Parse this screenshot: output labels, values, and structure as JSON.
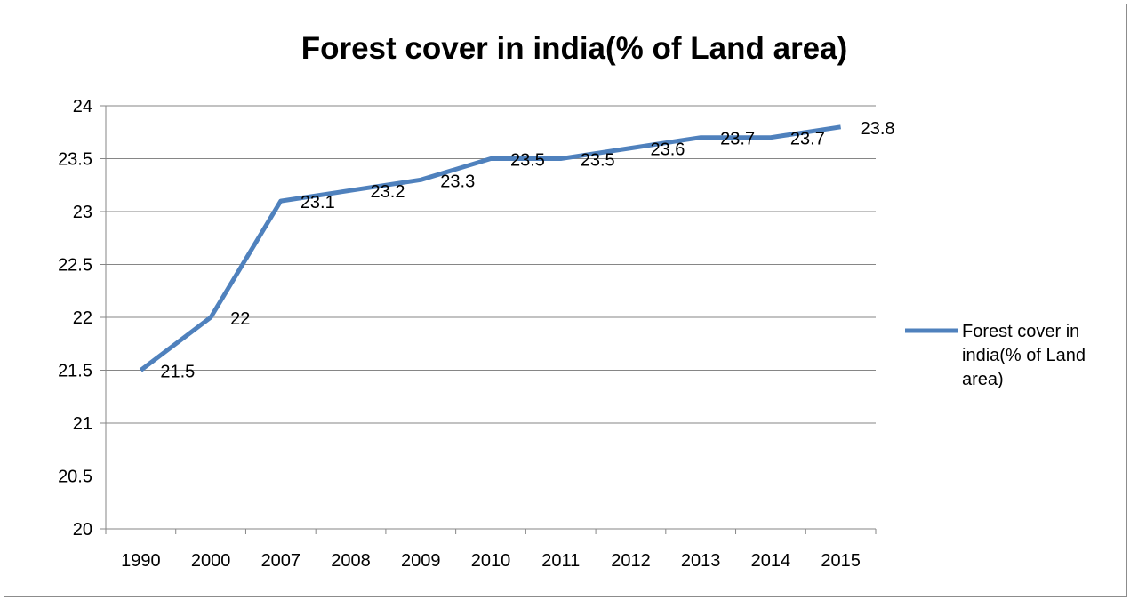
{
  "chart_data": {
    "type": "line",
    "title": "Forest cover in india(% of Land area)",
    "xlabel": "",
    "ylabel": "",
    "categories": [
      "1990",
      "2000",
      "2007",
      "2008",
      "2009",
      "2010",
      "2011",
      "2012",
      "2013",
      "2014",
      "2015"
    ],
    "series": [
      {
        "name": "Forest cover in india(% of Land area)",
        "values": [
          21.5,
          22,
          23.1,
          23.2,
          23.3,
          23.5,
          23.5,
          23.6,
          23.7,
          23.7,
          23.8
        ],
        "labels": [
          "21.5",
          "22",
          "23.1",
          "23.2",
          "23.3",
          "23.5",
          "23.5",
          "23.6",
          "23.7",
          "23.7",
          "23.8"
        ],
        "color": "#4f81bd"
      }
    ],
    "ylim": [
      20,
      24
    ],
    "yticks": [
      "20",
      "20.5",
      "21",
      "21.5",
      "22",
      "22.5",
      "23",
      "23.5",
      "24"
    ],
    "grid": true,
    "legend_position": "right",
    "legend_lines": [
      "Forest cover in",
      "india(% of Land",
      "area)"
    ],
    "colors": {
      "line": "#4f81bd",
      "grid": "#868686",
      "axis": "#868686",
      "border": "#8c8c8c"
    }
  }
}
